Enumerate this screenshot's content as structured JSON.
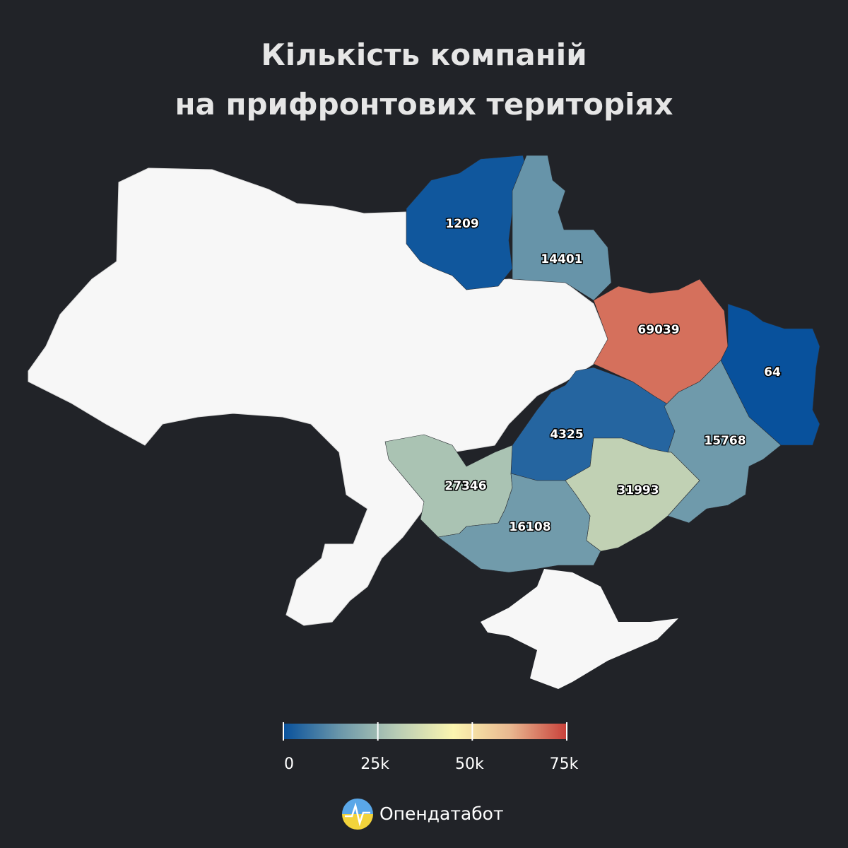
{
  "title": [
    "Кількість компаній",
    "на прифронтових територіях"
  ],
  "chart_data": {
    "type": "choropleth",
    "values": [
      1209,
      14401,
      69039,
      64,
      4325,
      15768,
      27346,
      31993,
      16108
    ],
    "colorscale": [
      "#08519c",
      "#6b97aa",
      "#b8ccb5",
      "#fbf5b0",
      "#e9b890",
      "#c8403a"
    ],
    "range": [
      0,
      75000
    ],
    "ticks": [
      0,
      {
        "value": 25000,
        "label": "25k"
      },
      {
        "value": 50000,
        "label": "50k"
      },
      {
        "value": 75000,
        "label": "75k"
      }
    ]
  },
  "footer": {
    "brand": "Опендатабот"
  }
}
